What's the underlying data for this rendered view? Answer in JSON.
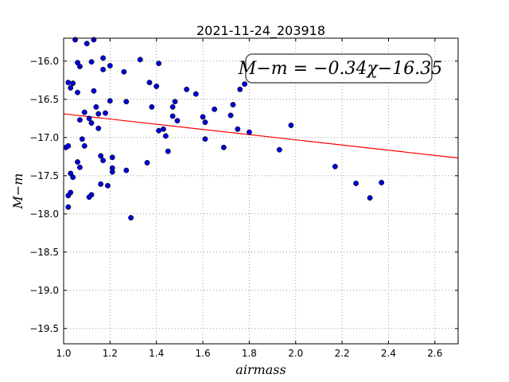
{
  "chart_data": {
    "type": "scatter",
    "title": "2021-11-24_203918",
    "xlabel": "airmass",
    "ylabel": "M−m",
    "xlim": [
      1.0,
      2.7
    ],
    "ylim": [
      -19.7,
      -15.7
    ],
    "y_inverted": true,
    "grid": true,
    "x_ticks": [
      1.0,
      1.2,
      1.4,
      1.6,
      1.8,
      2.0,
      2.2,
      2.4,
      2.6
    ],
    "x_tick_labels": [
      "1.0",
      "1.2",
      "1.4",
      "1.6",
      "1.8",
      "2.0",
      "2.2",
      "2.4",
      "2.6"
    ],
    "y_ticks": [
      -16.0,
      -16.5,
      -17.0,
      -17.5,
      -18.0,
      -18.5,
      -19.0,
      -19.5
    ],
    "y_tick_labels": [
      "−16.0",
      "−16.5",
      "−17.0",
      "−17.5",
      "−18.0",
      "−18.5",
      "−19.0",
      "−19.5"
    ],
    "fit_label": "M−m = −0.34χ−16.35",
    "fit": {
      "slope": -0.34,
      "intercept": -16.35,
      "color": "#ff0000"
    },
    "point_color": "#0000cc",
    "points": [
      [
        1.05,
        -15.72
      ],
      [
        1.13,
        -15.72
      ],
      [
        1.1,
        -15.77
      ],
      [
        1.07,
        -16.07
      ],
      [
        1.06,
        -16.02
      ],
      [
        1.12,
        -16.01
      ],
      [
        1.17,
        -15.96
      ],
      [
        1.17,
        -16.11
      ],
      [
        1.2,
        -16.06
      ],
      [
        1.26,
        -16.14
      ],
      [
        1.33,
        -15.98
      ],
      [
        1.41,
        -16.03
      ],
      [
        1.02,
        -16.28
      ],
      [
        1.03,
        -16.35
      ],
      [
        1.04,
        -16.29
      ],
      [
        1.06,
        -16.41
      ],
      [
        1.09,
        -16.67
      ],
      [
        1.13,
        -16.39
      ],
      [
        1.14,
        -16.6
      ],
      [
        1.15,
        -16.69
      ],
      [
        1.11,
        -16.75
      ],
      [
        1.07,
        -16.77
      ],
      [
        1.12,
        -16.81
      ],
      [
        1.18,
        -16.68
      ],
      [
        1.2,
        -16.52
      ],
      [
        1.27,
        -16.53
      ],
      [
        1.37,
        -16.28
      ],
      [
        1.38,
        -16.6
      ],
      [
        1.4,
        -16.33
      ],
      [
        1.48,
        -16.53
      ],
      [
        1.47,
        -16.6
      ],
      [
        1.47,
        -16.72
      ],
      [
        1.49,
        -16.78
      ],
      [
        1.53,
        -16.37
      ],
      [
        1.57,
        -16.43
      ],
      [
        1.6,
        -16.73
      ],
      [
        1.61,
        -16.8
      ],
      [
        1.65,
        -16.63
      ],
      [
        1.72,
        -16.71
      ],
      [
        1.73,
        -16.57
      ],
      [
        1.76,
        -16.37
      ],
      [
        1.78,
        -16.3
      ],
      [
        1.01,
        -17.13
      ],
      [
        1.02,
        -17.11
      ],
      [
        1.08,
        -17.02
      ],
      [
        1.09,
        -17.11
      ],
      [
        1.15,
        -16.88
      ],
      [
        1.41,
        -16.91
      ],
      [
        1.43,
        -16.89
      ],
      [
        1.44,
        -16.98
      ],
      [
        1.45,
        -17.18
      ],
      [
        1.61,
        -17.02
      ],
      [
        1.69,
        -17.13
      ],
      [
        1.75,
        -16.89
      ],
      [
        1.8,
        -16.93
      ],
      [
        1.93,
        -17.16
      ],
      [
        1.98,
        -16.84
      ],
      [
        1.03,
        -17.47
      ],
      [
        1.04,
        -17.52
      ],
      [
        1.06,
        -17.32
      ],
      [
        1.07,
        -17.39
      ],
      [
        1.16,
        -17.24
      ],
      [
        1.17,
        -17.3
      ],
      [
        1.21,
        -17.26
      ],
      [
        1.21,
        -17.4
      ],
      [
        1.21,
        -17.45
      ],
      [
        1.27,
        -17.43
      ],
      [
        1.36,
        -17.33
      ],
      [
        1.16,
        -17.61
      ],
      [
        1.19,
        -17.63
      ],
      [
        1.03,
        -17.72
      ],
      [
        1.02,
        -17.76
      ],
      [
        1.12,
        -17.75
      ],
      [
        1.11,
        -17.78
      ],
      [
        1.02,
        -17.91
      ],
      [
        1.29,
        -18.05
      ],
      [
        2.17,
        -17.38
      ],
      [
        2.26,
        -17.6
      ],
      [
        2.32,
        -17.79
      ],
      [
        2.37,
        -17.59
      ]
    ]
  }
}
